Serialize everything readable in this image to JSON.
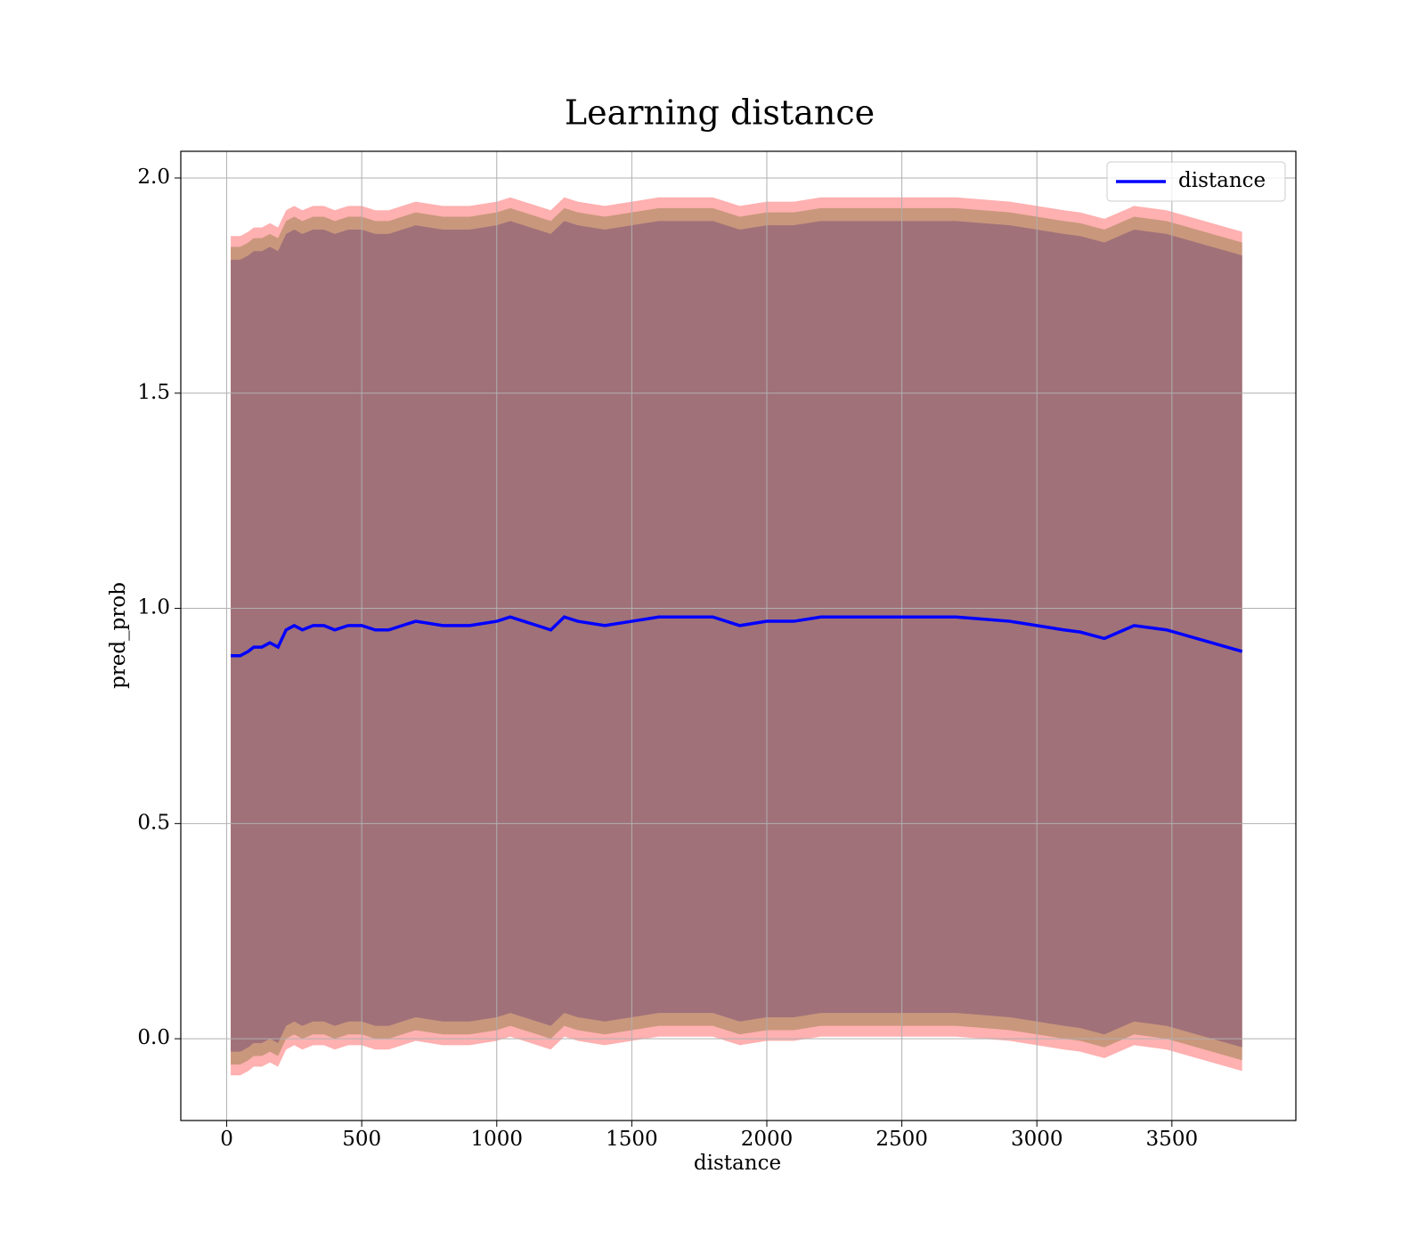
{
  "chart_data": {
    "type": "line",
    "title": "Learning distance",
    "xlabel": "distance",
    "ylabel": "pred_prob",
    "x": [
      15,
      50,
      80,
      100,
      130,
      160,
      190,
      220,
      250,
      280,
      320,
      360,
      400,
      450,
      500,
      550,
      600,
      650,
      700,
      800,
      900,
      1000,
      1050,
      1100,
      1150,
      1200,
      1250,
      1300,
      1400,
      1500,
      1600,
      1700,
      1750,
      1800,
      1900,
      2000,
      2100,
      2200,
      2300,
      2400,
      2500,
      2600,
      2700,
      2800,
      2900,
      3000,
      3100,
      3160,
      3250,
      3360,
      3480,
      3760
    ],
    "series": [
      {
        "name": "distance",
        "color": "#0000ff",
        "values": [
          0.89,
          0.89,
          0.9,
          0.91,
          0.91,
          0.92,
          0.91,
          0.95,
          0.96,
          0.95,
          0.96,
          0.96,
          0.95,
          0.96,
          0.96,
          0.95,
          0.95,
          0.96,
          0.97,
          0.96,
          0.96,
          0.97,
          0.98,
          0.97,
          0.96,
          0.95,
          0.98,
          0.97,
          0.96,
          0.97,
          0.98,
          0.98,
          0.98,
          0.98,
          0.96,
          0.97,
          0.97,
          0.98,
          0.98,
          0.98,
          0.98,
          0.98,
          0.98,
          0.975,
          0.97,
          0.96,
          0.95,
          0.945,
          0.93,
          0.96,
          0.95,
          0.9
        ]
      }
    ],
    "bands": [
      {
        "color": "#ffb0b0",
        "error": 0.975
      },
      {
        "color": "#c9977c",
        "error": 0.95
      },
      {
        "color": "#a07179",
        "error": 0.92
      }
    ],
    "xlim": [
      -170,
      3959
    ],
    "ylim": [
      -0.19,
      2.062
    ],
    "xticks": [
      0,
      500,
      1000,
      1500,
      2000,
      2500,
      3000,
      3500
    ],
    "yticks": [
      {
        "value": 0,
        "label": "0.0"
      },
      0.5,
      {
        "value": 1,
        "label": "1.0"
      },
      1.5,
      {
        "value": 2,
        "label": "2.0"
      }
    ],
    "grid": true,
    "legend": "upper right"
  }
}
